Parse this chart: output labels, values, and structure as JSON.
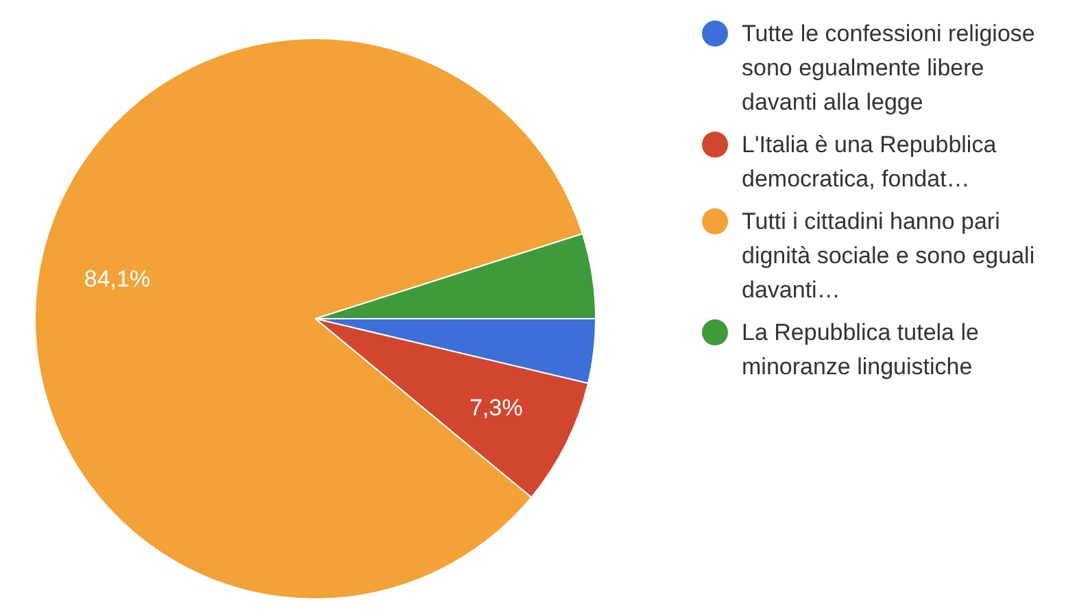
{
  "chart_data": {
    "type": "pie",
    "categories": [
      "Tutte le confessioni religiose sono egualmente libere davanti alla legge",
      "L'Italia è una Repubblica democratica, fondat…",
      "Tutti i cittadini hanno pari dignità sociale e sono eguali davanti…",
      "La Repubblica tutela le minoranze linguistiche"
    ],
    "values": [
      3.7,
      7.3,
      84.1,
      4.9
    ],
    "colors": [
      "#3c6fd8",
      "#d2462f",
      "#f2a237",
      "#3e9a3a"
    ],
    "value_labels": [
      null,
      "7,3%",
      "84,1%",
      null
    ],
    "legend": "right"
  }
}
